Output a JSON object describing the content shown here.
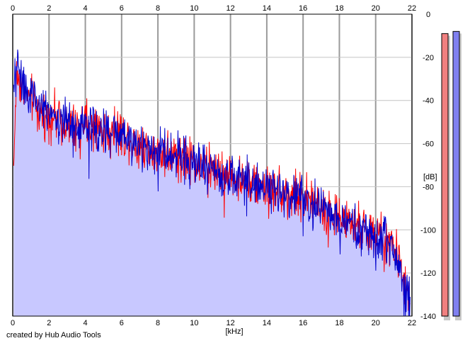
{
  "footer": {
    "credit": "created by Hub Audio Tools"
  },
  "chart_data": {
    "type": "line",
    "title": "",
    "xlabel": "[kHz]",
    "ylabel": "[dB]",
    "xlim": [
      0,
      22
    ],
    "ylim": [
      -140,
      0
    ],
    "x_ticks": [
      "0",
      "2",
      "4",
      "6",
      "8",
      "10",
      "12",
      "14",
      "16",
      "18",
      "20",
      "22"
    ],
    "y_ticks": [
      "0",
      "-20",
      "-40",
      "-60",
      "-80",
      "-100",
      "-120",
      "-140"
    ],
    "grid": true,
    "fill_color": "#c8c8ff",
    "series": [
      {
        "color": "#ff0000",
        "x": [
          0.05,
          0.2,
          0.5,
          1,
          1.5,
          2,
          2.5,
          3,
          3.5,
          4,
          4.5,
          5,
          5.5,
          6,
          6.5,
          7,
          7.5,
          8,
          8.5,
          9,
          9.5,
          10,
          10.5,
          11,
          11.5,
          12,
          12.5,
          13,
          13.5,
          14,
          14.5,
          15,
          15.5,
          16,
          16.5,
          17,
          17.5,
          18,
          18.5,
          19,
          19.5,
          20,
          20.5,
          21,
          21.5,
          21.9
        ],
        "values": [
          -72,
          -28,
          -33,
          -40,
          -45,
          -47,
          -48,
          -50,
          -53,
          -51,
          -52,
          -55,
          -52,
          -56,
          -57,
          -60,
          -62,
          -64,
          -63,
          -65,
          -65,
          -68,
          -70,
          -72,
          -74,
          -75,
          -76,
          -78,
          -78,
          -80,
          -80,
          -82,
          -84,
          -85,
          -87,
          -89,
          -92,
          -95,
          -96,
          -98,
          -100,
          -102,
          -105,
          -108,
          -120,
          -136
        ]
      },
      {
        "color": "#0000cc",
        "x": [
          0.05,
          0.2,
          0.5,
          1,
          1.5,
          2,
          2.5,
          3,
          3.5,
          4,
          4.5,
          5,
          5.5,
          6,
          6.5,
          7,
          7.5,
          8,
          8.5,
          9,
          9.5,
          10,
          10.5,
          11,
          11.5,
          12,
          12.5,
          13,
          13.5,
          14,
          14.5,
          15,
          15.5,
          16,
          16.5,
          17,
          17.5,
          18,
          18.5,
          19,
          19.5,
          20,
          20.5,
          21,
          21.5,
          21.9
        ],
        "values": [
          -40,
          -22,
          -30,
          -38,
          -43,
          -46,
          -48,
          -50,
          -52,
          -51,
          -53,
          -54,
          -53,
          -56,
          -58,
          -60,
          -61,
          -63,
          -64,
          -65,
          -66,
          -68,
          -69,
          -72,
          -73,
          -75,
          -76,
          -77,
          -79,
          -79,
          -81,
          -82,
          -83,
          -85,
          -88,
          -90,
          -91,
          -96,
          -97,
          -99,
          -101,
          -103,
          -104,
          -110,
          -122,
          -134
        ]
      }
    ],
    "level_meters": [
      {
        "color": "#f08080",
        "level_db": -9
      },
      {
        "color": "#8080f0",
        "level_db": -8
      }
    ]
  }
}
